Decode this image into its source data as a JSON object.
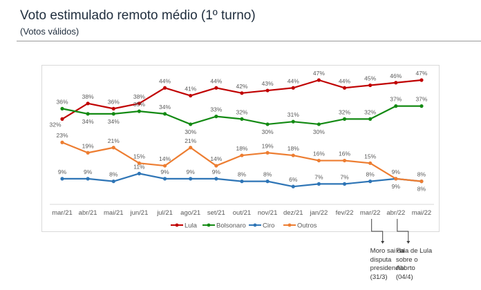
{
  "header": {
    "title": "Voto estimulado remoto médio (1º turno)",
    "subtitle": "(Votos válidos)"
  },
  "chart_data": {
    "type": "line",
    "title": "Voto estimulado remoto médio (1º turno)",
    "subtitle": "(Votos válidos)",
    "xlabel": "",
    "ylabel": "",
    "unit": "%",
    "ylim": [
      0,
      50
    ],
    "grid": false,
    "legend_position": "bottom",
    "categories": [
      "mar/21",
      "abr/21",
      "mai/21",
      "jun/21",
      "jul/21",
      "ago/21",
      "set/21",
      "out/21",
      "nov/21",
      "dez/21",
      "jan/22",
      "fev/22",
      "mar/22",
      "abr/22",
      "mai/22"
    ],
    "series": [
      {
        "name": "Lula",
        "color": "#c00000",
        "values": [
          32,
          38,
          36,
          38,
          44,
          41,
          44,
          42,
          43,
          44,
          47,
          44,
          45,
          46,
          47
        ]
      },
      {
        "name": "Bolsonaro",
        "color": "#138a13",
        "values": [
          36,
          34,
          34,
          35,
          34,
          30,
          33,
          32,
          30,
          31,
          30,
          32,
          32,
          37,
          37
        ]
      },
      {
        "name": "Ciro",
        "color": "#2e75b6",
        "values": [
          9,
          9,
          8,
          11,
          9,
          9,
          9,
          8,
          8,
          6,
          7,
          7,
          8,
          9,
          8
        ]
      },
      {
        "name": "Outros",
        "color": "#ed7d31",
        "values": [
          23,
          19,
          21,
          15,
          14,
          21,
          14,
          18,
          19,
          18,
          16,
          16,
          15,
          9,
          8
        ]
      }
    ],
    "annotations": [
      {
        "category": "mar/22",
        "text": "Moro sai da\ndisputa\npresidencial\n(31/3)"
      },
      {
        "category": "abr/22",
        "text": "Fala de Lula\nsobre o\nAborto\n(04/4)"
      }
    ]
  }
}
